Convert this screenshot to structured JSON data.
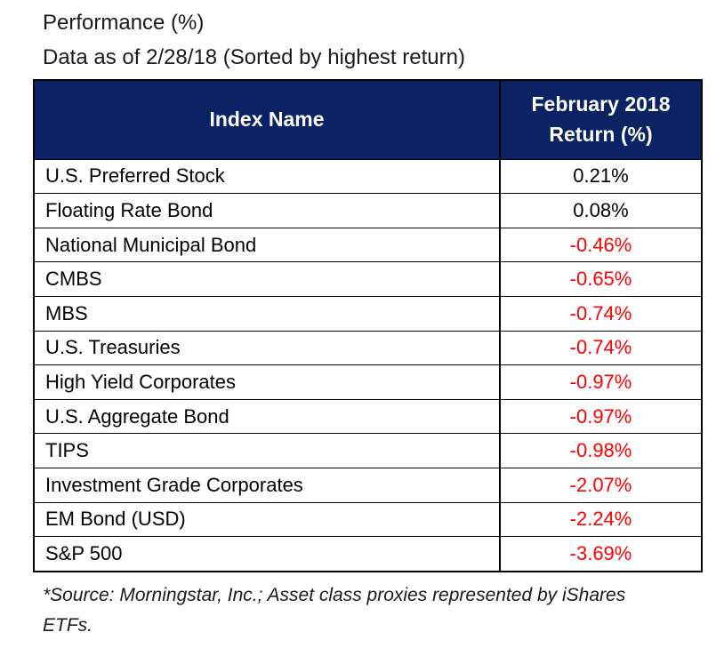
{
  "header": {
    "title": "Performance (%)",
    "subtitle": "Data as of 2/28/18 (Sorted by highest return)"
  },
  "table": {
    "columns": [
      "Index Name",
      "February 2018\nReturn (%)"
    ],
    "header_bg": "#0b2265",
    "header_text_color": "#ffffff",
    "positive_color": "#000000",
    "negative_color": "#ff0000",
    "border_color": "#000000",
    "rows": [
      {
        "index_name": "U.S. Preferred Stock",
        "return": "0.21%",
        "negative": false
      },
      {
        "index_name": "Floating Rate Bond",
        "return": "0.08%",
        "negative": false
      },
      {
        "index_name": "National Municipal Bond",
        "return": "-0.46%",
        "negative": true
      },
      {
        "index_name": "CMBS",
        "return": "-0.65%",
        "negative": true
      },
      {
        "index_name": "MBS",
        "return": "-0.74%",
        "negative": true
      },
      {
        "index_name": "U.S. Treasuries",
        "return": "-0.74%",
        "negative": true
      },
      {
        "index_name": "High Yield Corporates",
        "return": "-0.97%",
        "negative": true
      },
      {
        "index_name": "U.S. Aggregate Bond",
        "return": "-0.97%",
        "negative": true
      },
      {
        "index_name": "TIPS",
        "return": "-0.98%",
        "negative": true
      },
      {
        "index_name": "Investment Grade Corporates",
        "return": "-2.07%",
        "negative": true
      },
      {
        "index_name": "EM Bond (USD)",
        "return": "-2.24%",
        "negative": true
      },
      {
        "index_name": "S&P 500",
        "return": "-3.69%",
        "negative": true
      }
    ]
  },
  "footer": {
    "source_note": "*Source: Morningstar, Inc.; Asset class proxies represented by iShares\nETFs."
  },
  "chart_data": {
    "type": "table",
    "title": "Performance (%)",
    "subtitle": "Data as of 2/28/18 (Sorted by highest return)",
    "columns": [
      "Index Name",
      "February 2018 Return (%)"
    ],
    "rows": [
      [
        "U.S. Preferred Stock",
        0.21
      ],
      [
        "Floating Rate Bond",
        0.08
      ],
      [
        "National Municipal Bond",
        -0.46
      ],
      [
        "CMBS",
        -0.65
      ],
      [
        "MBS",
        -0.74
      ],
      [
        "U.S. Treasuries",
        -0.74
      ],
      [
        "High Yield Corporates",
        -0.97
      ],
      [
        "U.S. Aggregate Bond",
        -0.97
      ],
      [
        "TIPS",
        -0.98
      ],
      [
        "Investment Grade Corporates",
        -2.07
      ],
      [
        "EM Bond (USD)",
        -2.24
      ],
      [
        "S&P 500",
        -3.69
      ]
    ],
    "notes": "Positive returns shown in black, negative returns shown in red; sorted descending by return."
  }
}
